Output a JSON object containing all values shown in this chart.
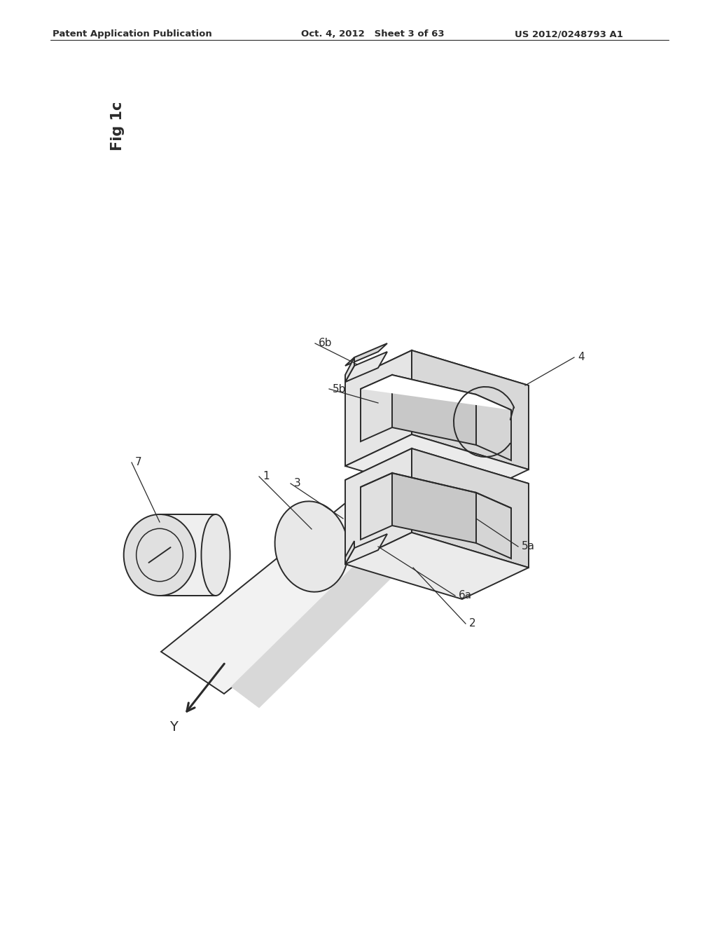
{
  "header_left": "Patent Application Publication",
  "header_mid": "Oct. 4, 2012   Sheet 3 of 63",
  "header_right": "US 2012/0248793 A1",
  "fig_label": "Fig 1c",
  "bg_color": "#ffffff",
  "line_color": "#2a2a2a",
  "line_width": 1.4
}
